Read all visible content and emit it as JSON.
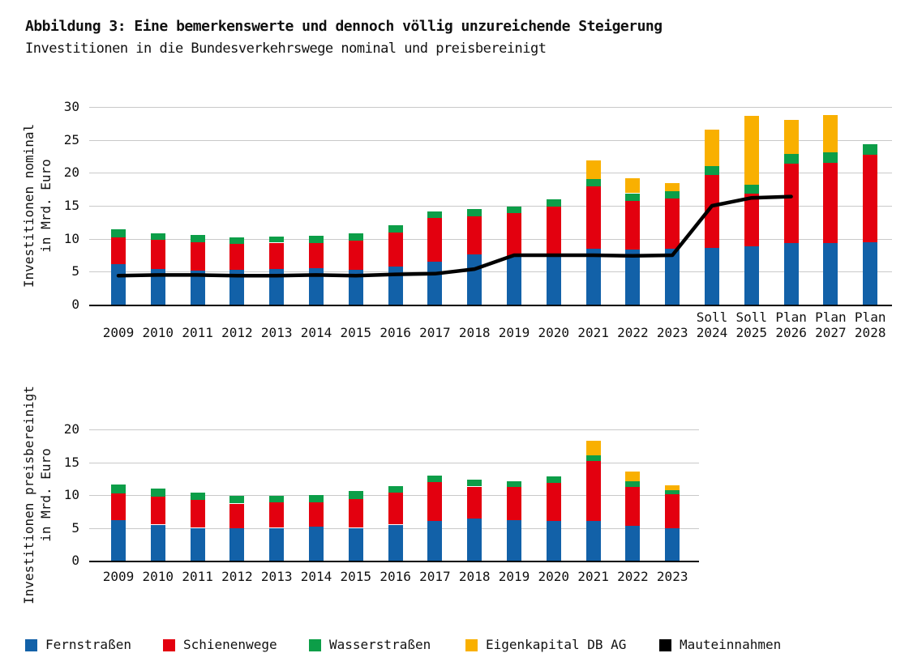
{
  "header": {
    "title": "Abbildung 3: Eine bemerkenswerte und dennoch völlig unzureichende Steigerung",
    "subtitle": "Investitionen in die Bundesverkehrswege nominal und preisbereinigt"
  },
  "colors": {
    "fernstrassen": "#1261A8",
    "schienenwege": "#E3000F",
    "wasserstrassen": "#0C9E48",
    "eigenkapital_db": "#F9B000",
    "mauteinnahmen": "#000000",
    "gridline": "#C9C9C9",
    "axis": "#000000"
  },
  "legend": {
    "items": [
      {
        "label": "Fernstraßen",
        "color": "fernstrassen"
      },
      {
        "label": "Schienenwege",
        "color": "schienenwege"
      },
      {
        "label": "Wasserstraßen",
        "color": "wasserstrassen"
      },
      {
        "label": "Eigenkapital DB AG",
        "color": "eigenkapital_db"
      },
      {
        "label": "Mauteinnahmen",
        "color": "mauteinnahmen"
      }
    ]
  },
  "chart_data": [
    {
      "type": "bar",
      "stacked": true,
      "y_axis_title": "Investitionen nominal\nin Mrd. Euro",
      "unit": "Mrd. Euro",
      "ylim": [
        0,
        30
      ],
      "yticks": [
        0,
        5,
        10,
        15,
        20,
        25,
        30
      ],
      "grid": true,
      "categories": [
        "2009",
        "2010",
        "2011",
        "2012",
        "2013",
        "2014",
        "2015",
        "2016",
        "2017",
        "2018",
        "2019",
        "2020",
        "2021",
        "2022",
        "2023",
        "2024",
        "2025",
        "2026",
        "2027",
        "2028"
      ],
      "category_prefixes": [
        "",
        "",
        "",
        "",
        "",
        "",
        "",
        "",
        "",
        "",
        "",
        "",
        "",
        "",
        "",
        "Soll",
        "Soll",
        "Plan",
        "Plan",
        "Plan"
      ],
      "series": [
        {
          "name": "Fernstraßen",
          "color": "fernstrassen",
          "values": [
            6.1,
            5.4,
            5.2,
            5.3,
            5.4,
            5.5,
            5.3,
            5.8,
            6.5,
            7.6,
            7.4,
            7.6,
            8.5,
            8.4,
            8.5,
            8.6,
            8.9,
            9.3,
            9.3,
            9.5
          ]
        },
        {
          "name": "Schienenwege",
          "color": "schienenwege",
          "values": [
            4.1,
            4.4,
            4.3,
            3.9,
            4.0,
            3.8,
            4.4,
            5.1,
            6.7,
            5.8,
            6.5,
            7.3,
            9.4,
            7.3,
            7.6,
            11.1,
            7.9,
            12.1,
            12.2,
            13.2
          ]
        },
        {
          "name": "Wasserstraßen",
          "color": "wasserstrassen",
          "values": [
            1.2,
            1.0,
            1.1,
            1.0,
            0.9,
            1.1,
            1.1,
            1.1,
            1.0,
            1.1,
            1.0,
            1.1,
            1.2,
            1.2,
            1.1,
            1.3,
            1.4,
            1.5,
            1.6,
            1.6
          ]
        },
        {
          "name": "Eigenkapital DB AG",
          "color": "eigenkapital_db",
          "values": [
            0,
            0,
            0,
            0,
            0,
            0,
            0,
            0,
            0,
            0,
            0,
            0,
            2.8,
            2.3,
            1.2,
            5.6,
            10.4,
            5.2,
            5.7,
            0
          ]
        }
      ],
      "line": {
        "name": "Mauteinnahmen",
        "color": "mauteinnahmen",
        "values": [
          4.4,
          4.5,
          4.5,
          4.4,
          4.4,
          4.5,
          4.4,
          4.6,
          4.7,
          5.4,
          7.5,
          7.5,
          7.5,
          7.4,
          7.5,
          15.0,
          16.2,
          16.4,
          null,
          null
        ]
      }
    },
    {
      "type": "bar",
      "stacked": true,
      "y_axis_title": "Investitionen preisbereinigt\nin Mrd. Euro",
      "unit": "Mrd. Euro",
      "ylim": [
        0,
        20
      ],
      "yticks": [
        0,
        5,
        10,
        15,
        20
      ],
      "grid": true,
      "categories": [
        "2009",
        "2010",
        "2011",
        "2012",
        "2013",
        "2014",
        "2015",
        "2016",
        "2017",
        "2018",
        "2019",
        "2020",
        "2021",
        "2022",
        "2023"
      ],
      "category_prefixes": [
        "",
        "",
        "",
        "",
        "",
        "",
        "",
        "",
        "",
        "",
        "",
        "",
        "",
        "",
        ""
      ],
      "series": [
        {
          "name": "Fernstraßen",
          "color": "fernstrassen",
          "values": [
            6.2,
            5.5,
            5.0,
            5.0,
            5.0,
            5.2,
            5.0,
            5.5,
            6.0,
            6.4,
            6.2,
            6.1,
            6.1,
            5.3,
            4.9
          ]
        },
        {
          "name": "Schienenwege",
          "color": "schienenwege",
          "values": [
            4.0,
            4.2,
            4.3,
            3.7,
            3.9,
            3.7,
            4.4,
            4.9,
            6.0,
            4.9,
            5.0,
            5.8,
            9.1,
            5.9,
            5.2
          ]
        },
        {
          "name": "Wasserstraßen",
          "color": "wasserstrassen",
          "values": [
            1.4,
            1.3,
            1.1,
            1.2,
            1.0,
            1.1,
            1.2,
            1.0,
            1.0,
            1.1,
            0.9,
            1.0,
            0.9,
            0.9,
            0.6
          ]
        },
        {
          "name": "Eigenkapital DB AG",
          "color": "eigenkapital_db",
          "values": [
            0,
            0,
            0,
            0,
            0,
            0,
            0,
            0,
            0,
            0,
            0,
            0,
            2.2,
            1.5,
            0.8
          ]
        }
      ]
    }
  ]
}
